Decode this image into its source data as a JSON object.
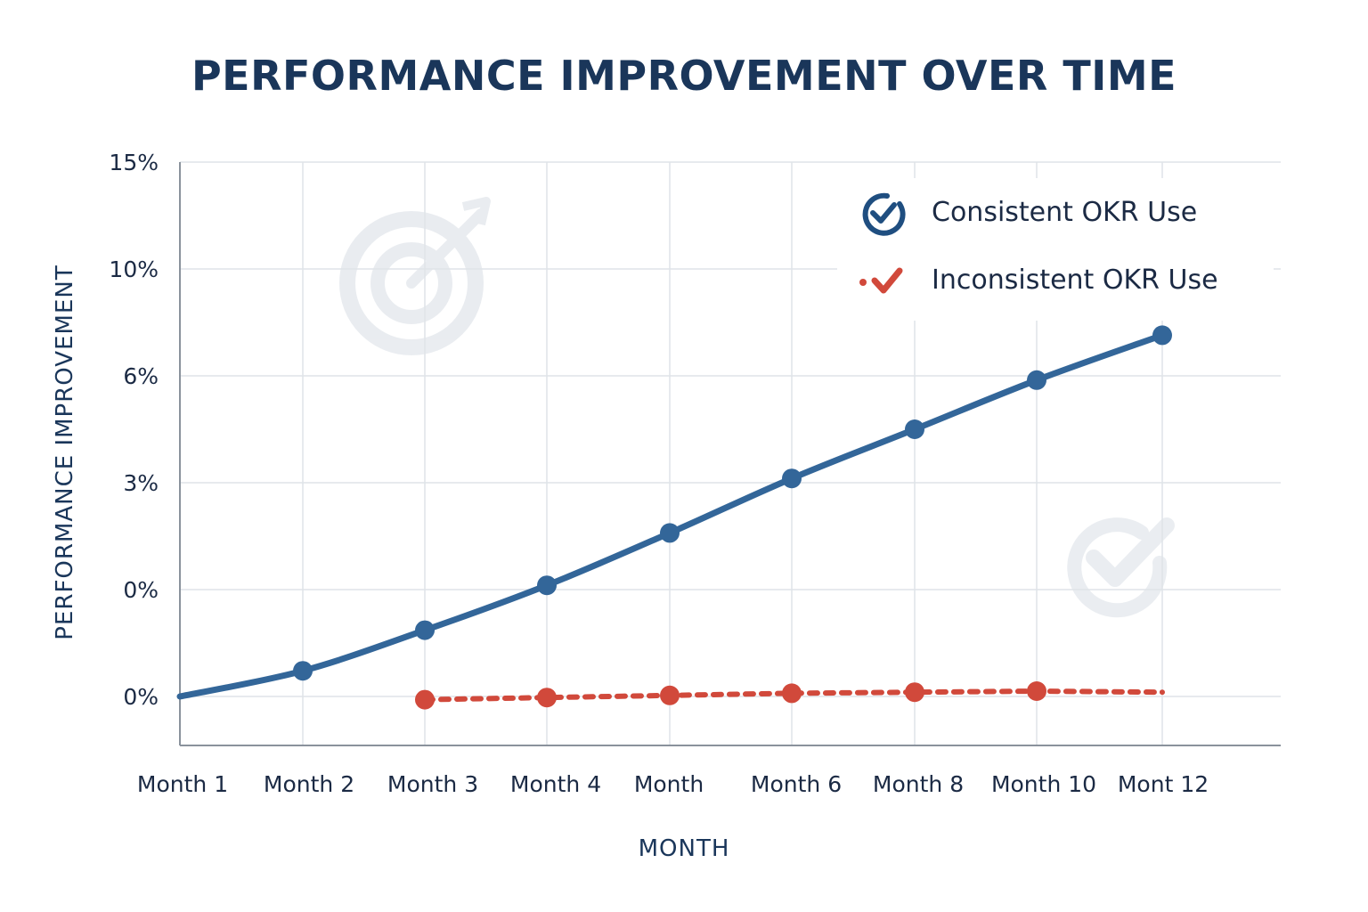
{
  "chart_data": {
    "type": "line",
    "title": "PERFORMANCE IMPROVEMENT OVER TIME",
    "xlabel": "MONTH",
    "ylabel": "PERFORMANCE IMPROVEMENT",
    "y_tick_labels": [
      "15%",
      "10%",
      "6%",
      "3%",
      "0%",
      "0%"
    ],
    "x_tick_labels": [
      "Month 1",
      "Month 2",
      "Month 3",
      "Month 4",
      "Month",
      "Month 6",
      "Month 8",
      "Month 10",
      "Mont 12"
    ],
    "grid": true,
    "legend_position": "top-right",
    "series": [
      {
        "name": "Consistent OKR Use",
        "color": "#336699",
        "style": "solid",
        "marker_icon": "check-circle-icon",
        "points": [
          {
            "x_index": 0,
            "y_level": 0.0
          },
          {
            "x_index": 1,
            "y_level": 0.24
          },
          {
            "x_index": 2,
            "y_level": 0.62
          },
          {
            "x_index": 3,
            "y_level": 1.04
          },
          {
            "x_index": 4,
            "y_level": 1.53
          },
          {
            "x_index": 5,
            "y_level": 2.04
          },
          {
            "x_index": 6,
            "y_level": 2.5
          },
          {
            "x_index": 7,
            "y_level": 2.96
          },
          {
            "x_index": 8,
            "y_level": 3.38
          }
        ]
      },
      {
        "name": "Inconsistent OKR Use",
        "color": "#d1493b",
        "style": "dotted",
        "marker_icon": "red-check-icon",
        "points": [
          {
            "x_index": 2,
            "y_level": -0.03
          },
          {
            "x_index": 3,
            "y_level": -0.01
          },
          {
            "x_index": 4,
            "y_level": 0.01
          },
          {
            "x_index": 5,
            "y_level": 0.03
          },
          {
            "x_index": 6,
            "y_level": 0.04
          },
          {
            "x_index": 7,
            "y_level": 0.05
          },
          {
            "x_index": 8,
            "y_level": 0.04
          }
        ]
      }
    ],
    "decorations": [
      "target-icon",
      "checkmark-icon"
    ]
  }
}
